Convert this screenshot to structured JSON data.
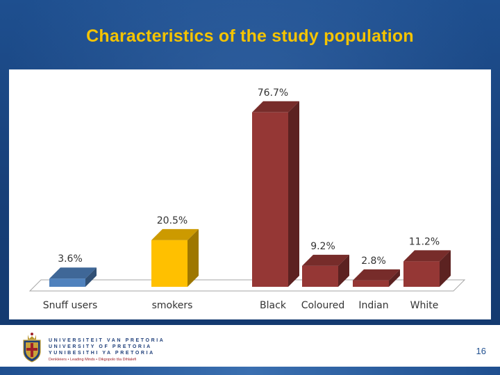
{
  "slide": {
    "title": "Characteristics of the study population",
    "page_number": "16",
    "title_color": "#f5c400"
  },
  "footer": {
    "logo_lines": [
      "UNIVERSITEIT VAN PRETORIA",
      "UNIVERSITY OF PRETORIA",
      "YUNIBESITHI YA PRETORIA"
    ],
    "motto": "Denkleiers • Leading Minds • Dikgopolo tša Dihlalefi"
  },
  "chart_data": {
    "type": "bar",
    "title": "",
    "xlabel": "",
    "ylabel": "",
    "ylim": [
      0,
      80
    ],
    "grid": false,
    "legend": "none",
    "style": "3d",
    "categories": [
      "Snuff users",
      "smokers",
      "Black",
      "Coloured",
      "Indian",
      "White"
    ],
    "values": [
      3.6,
      20.5,
      76.7,
      9.2,
      2.8,
      11.2
    ],
    "data_labels": [
      "3.6%",
      "20.5%",
      "76.7%",
      "9.2%",
      "2.8%",
      "11.2%"
    ],
    "colors": [
      "#4f81bd",
      "#ffc000",
      "#953735",
      "#953735",
      "#953735",
      "#953735"
    ]
  }
}
